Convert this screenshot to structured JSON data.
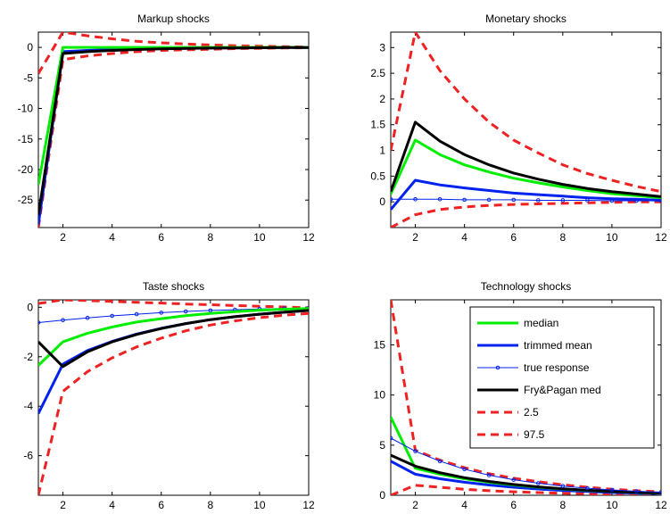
{
  "colors": {
    "median": "#00ee00",
    "trimmed": "#0022ee",
    "true": "#0022ee",
    "fp": "#000000",
    "band": "#ee2222"
  },
  "legend": [
    {
      "key": "median",
      "label": "median",
      "style": "median"
    },
    {
      "key": "trimmed",
      "label": "trimmed mean",
      "style": "trimmed"
    },
    {
      "key": "true",
      "label": "true response",
      "style": "true"
    },
    {
      "key": "fp",
      "label": "Fry&Pagan med",
      "style": "fp"
    },
    {
      "key": "lo",
      "label": "2.5",
      "style": "band"
    },
    {
      "key": "hi",
      "label": "97.5",
      "style": "band"
    }
  ],
  "chart_data": [
    {
      "type": "line",
      "title": "Markup shocks",
      "x": [
        1,
        2,
        3,
        4,
        5,
        6,
        7,
        8,
        9,
        10,
        11,
        12
      ],
      "xlim": [
        1,
        12
      ],
      "ylim": [
        -29.5,
        2.5
      ],
      "xticks": [
        2,
        4,
        6,
        8,
        10,
        12
      ],
      "yticks": [
        0,
        -5,
        -10,
        -15,
        -20,
        -25
      ],
      "series": [
        {
          "key": "lo",
          "style": "band",
          "values": [
            -29.5,
            -2.0,
            -1.4,
            -1.0,
            -0.7,
            -0.5,
            -0.4,
            -0.3,
            -0.2,
            -0.15,
            -0.1,
            -0.05
          ]
        },
        {
          "key": "hi",
          "style": "band",
          "values": [
            -4.3,
            2.5,
            1.9,
            1.4,
            1.0,
            0.75,
            0.55,
            0.4,
            0.28,
            0.2,
            0.12,
            0.05
          ]
        },
        {
          "key": "trimmed",
          "style": "trimmed",
          "values": [
            -29.0,
            -0.7,
            -0.5,
            -0.35,
            -0.25,
            -0.2,
            -0.15,
            -0.1,
            -0.07,
            -0.05,
            -0.03,
            -0.01
          ]
        },
        {
          "key": "median",
          "style": "median",
          "values": [
            -22.5,
            0,
            0,
            0,
            0,
            0,
            0,
            0,
            0,
            0,
            0,
            0
          ]
        },
        {
          "key": "fp",
          "style": "fp",
          "values": [
            -27.5,
            -1.0,
            -0.7,
            -0.5,
            -0.35,
            -0.25,
            -0.18,
            -0.12,
            -0.08,
            -0.05,
            -0.03,
            -0.01
          ]
        }
      ]
    },
    {
      "type": "line",
      "title": "Monetary shocks",
      "x": [
        1,
        2,
        3,
        4,
        5,
        6,
        7,
        8,
        9,
        10,
        11,
        12
      ],
      "xlim": [
        1,
        12
      ],
      "ylim": [
        -0.5,
        3.3
      ],
      "xticks": [
        2,
        4,
        6,
        8,
        10,
        12
      ],
      "yticks": [
        0,
        0.5,
        1,
        1.5,
        2,
        2.5,
        3
      ],
      "series": [
        {
          "key": "lo",
          "style": "band",
          "values": [
            -0.5,
            -0.25,
            -0.15,
            -0.1,
            -0.07,
            -0.05,
            -0.04,
            -0.03,
            -0.02,
            -0.01,
            0,
            0
          ]
        },
        {
          "key": "hi",
          "style": "band",
          "values": [
            1.0,
            3.3,
            2.55,
            2.0,
            1.55,
            1.2,
            0.95,
            0.72,
            0.55,
            0.42,
            0.3,
            0.2
          ]
        },
        {
          "key": "true",
          "style": "true",
          "values": [
            0.05,
            0.05,
            0.05,
            0.04,
            0.04,
            0.04,
            0.03,
            0.03,
            0.03,
            0.02,
            0.02,
            0.02
          ]
        },
        {
          "key": "trimmed",
          "style": "trimmed",
          "values": [
            -0.15,
            0.42,
            0.33,
            0.27,
            0.22,
            0.17,
            0.14,
            0.11,
            0.08,
            0.06,
            0.05,
            0.03
          ]
        },
        {
          "key": "median",
          "style": "median",
          "values": [
            0.15,
            1.2,
            0.92,
            0.72,
            0.58,
            0.46,
            0.37,
            0.29,
            0.22,
            0.16,
            0.12,
            0.08
          ]
        },
        {
          "key": "fp",
          "style": "fp",
          "values": [
            0.2,
            1.55,
            1.18,
            0.92,
            0.72,
            0.56,
            0.44,
            0.34,
            0.26,
            0.2,
            0.15,
            0.1
          ]
        }
      ]
    },
    {
      "type": "line",
      "title": "Taste shocks",
      "x": [
        1,
        2,
        3,
        4,
        5,
        6,
        7,
        8,
        9,
        10,
        11,
        12
      ],
      "xlim": [
        1,
        12
      ],
      "ylim": [
        -7.6,
        0.3
      ],
      "xticks": [
        2,
        4,
        6,
        8,
        10,
        12
      ],
      "yticks": [
        0,
        -2,
        -4,
        -6
      ],
      "series": [
        {
          "key": "lo",
          "style": "band",
          "values": [
            -7.6,
            -3.4,
            -2.6,
            -2.05,
            -1.6,
            -1.25,
            -0.95,
            -0.72,
            -0.55,
            -0.42,
            -0.32,
            -0.25
          ]
        },
        {
          "key": "hi",
          "style": "band",
          "values": [
            0.15,
            0.3,
            0.27,
            0.24,
            0.2,
            0.17,
            0.13,
            0.1,
            0.07,
            0.04,
            0.01,
            -0.02
          ]
        },
        {
          "key": "true",
          "style": "true",
          "values": [
            -0.62,
            -0.52,
            -0.43,
            -0.35,
            -0.28,
            -0.22,
            -0.17,
            -0.13,
            -0.1,
            -0.07,
            -0.05,
            -0.03
          ]
        },
        {
          "key": "trimmed",
          "style": "trimmed",
          "values": [
            -4.3,
            -2.3,
            -1.75,
            -1.38,
            -1.08,
            -0.85,
            -0.66,
            -0.5,
            -0.38,
            -0.28,
            -0.2,
            -0.13
          ]
        },
        {
          "key": "median",
          "style": "median",
          "values": [
            -2.35,
            -1.4,
            -1.05,
            -0.8,
            -0.6,
            -0.46,
            -0.34,
            -0.25,
            -0.18,
            -0.12,
            -0.08,
            -0.05
          ]
        },
        {
          "key": "fp",
          "style": "fp",
          "values": [
            -1.4,
            -2.4,
            -1.8,
            -1.4,
            -1.1,
            -0.86,
            -0.66,
            -0.5,
            -0.38,
            -0.28,
            -0.2,
            -0.13
          ]
        }
      ]
    },
    {
      "type": "line",
      "title": "Technology shocks",
      "x": [
        1,
        2,
        3,
        4,
        5,
        6,
        7,
        8,
        9,
        10,
        11,
        12
      ],
      "xlim": [
        1,
        12
      ],
      "ylim": [
        0,
        19.5
      ],
      "xticks": [
        2,
        4,
        6,
        8,
        10,
        12
      ],
      "yticks": [
        0,
        5,
        10,
        15
      ],
      "legend_position": "top-right",
      "series": [
        {
          "key": "lo",
          "style": "band",
          "values": [
            0,
            1.0,
            0.8,
            0.6,
            0.45,
            0.35,
            0.27,
            0.2,
            0.15,
            0.1,
            0.07,
            0.05
          ]
        },
        {
          "key": "hi",
          "style": "band",
          "values": [
            19.5,
            4.5,
            3.5,
            2.75,
            2.15,
            1.7,
            1.35,
            1.05,
            0.8,
            0.6,
            0.45,
            0.35
          ]
        },
        {
          "key": "trimmed",
          "style": "trimmed",
          "values": [
            3.4,
            2.1,
            1.65,
            1.3,
            1.02,
            0.8,
            0.62,
            0.48,
            0.37,
            0.28,
            0.21,
            0.15
          ]
        },
        {
          "key": "median",
          "style": "median",
          "values": [
            7.8,
            2.7,
            2.1,
            1.65,
            1.3,
            1.02,
            0.8,
            0.62,
            0.48,
            0.37,
            0.28,
            0.2
          ]
        },
        {
          "key": "fp",
          "style": "fp",
          "values": [
            4.0,
            2.9,
            2.25,
            1.75,
            1.38,
            1.08,
            0.84,
            0.65,
            0.5,
            0.38,
            0.29,
            0.22
          ]
        },
        {
          "key": "true",
          "style": "true",
          "values": [
            5.7,
            4.4,
            3.4,
            2.6,
            2.0,
            1.55,
            1.2,
            0.92,
            0.7,
            0.53,
            0.4,
            0.3
          ]
        }
      ]
    }
  ]
}
